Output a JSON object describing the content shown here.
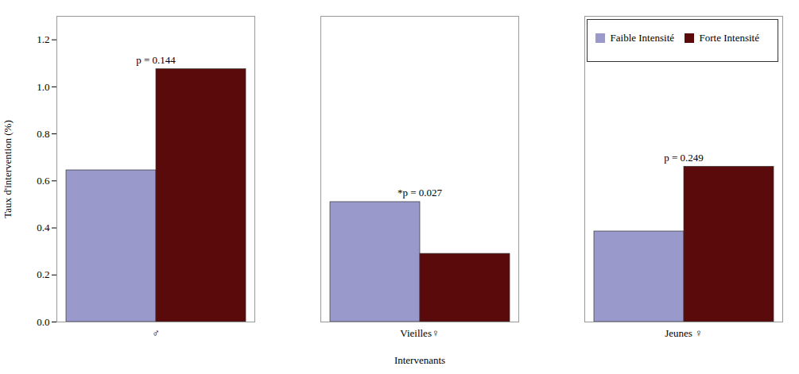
{
  "chart_data": {
    "type": "bar",
    "categories": [
      "♂",
      "Vieilles♀",
      "Jeunes ♀"
    ],
    "series": [
      {
        "name": "Faible Intensité",
        "color": "#9999cc",
        "values": [
          0.645,
          0.51,
          0.385
        ]
      },
      {
        "name": "Forte Intensité",
        "color": "#5a0a0a",
        "values": [
          1.075,
          0.29,
          0.66
        ]
      }
    ],
    "xlabel": "Intervenants",
    "ylabel": "Taux d'intervention (%)",
    "ylim": [
      0,
      1.3
    ],
    "yticks": [
      {
        "value": 0.0,
        "label": "0.0"
      },
      0.2,
      0.4,
      0.6,
      0.8,
      {
        "value": 1.0,
        "label": "1.0"
      },
      1.2
    ],
    "annotations": [
      {
        "text": "p = 0.144",
        "category": "♂",
        "y": 1.09
      },
      {
        "text": "*p = 0.027",
        "category": "Vieilles♀",
        "y": 0.525
      },
      {
        "text": "p = 0.249",
        "category": "Jeunes ♀",
        "y": 0.675
      }
    ],
    "legend": "upper right",
    "grid": false
  }
}
